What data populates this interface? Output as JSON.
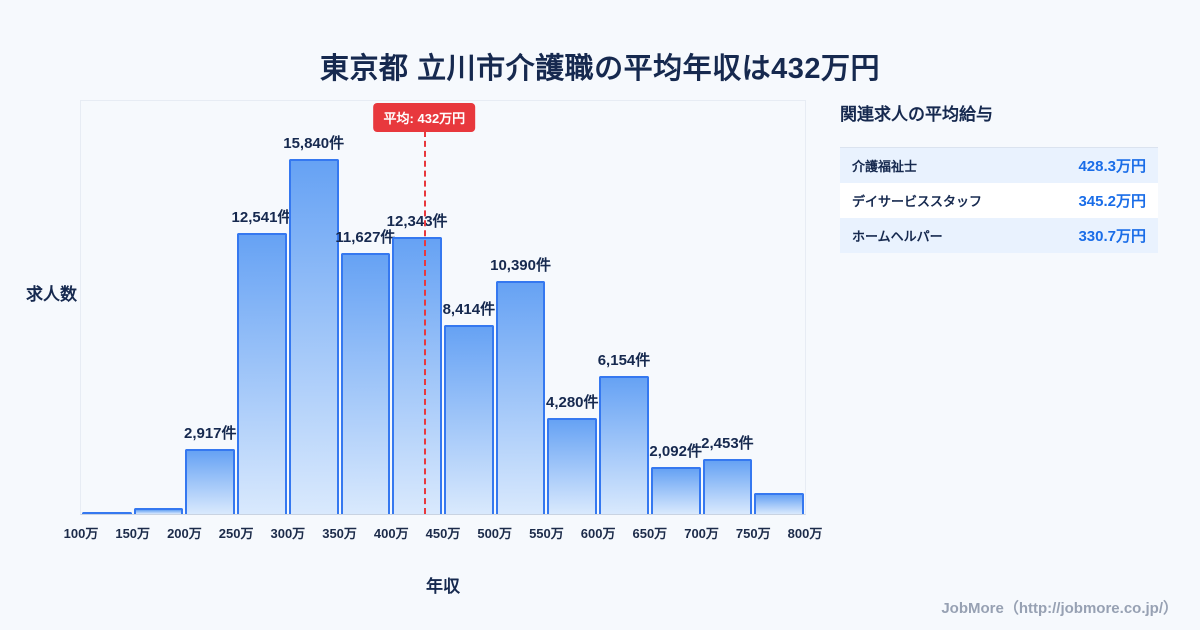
{
  "page": {
    "title": "東京都 立川市介護職の平均年収は432万円",
    "footer": "JobMore（http://jobmore.co.jp/）"
  },
  "chart_data": {
    "type": "bar",
    "title": "東京都 立川市介護職の平均年収は432万円",
    "xlabel": "年収",
    "ylabel": "求人数",
    "x_range": [
      100,
      800
    ],
    "x_ticks": [
      "100万",
      "150万",
      "200万",
      "250万",
      "300万",
      "350万",
      "400万",
      "450万",
      "500万",
      "550万",
      "600万",
      "650万",
      "700万",
      "750万",
      "800万"
    ],
    "bins": [
      {
        "range": "100万-150万",
        "value": 100,
        "label": ""
      },
      {
        "range": "150万-200万",
        "value": 260,
        "label": ""
      },
      {
        "range": "200万-250万",
        "value": 2917,
        "label": "2,917件"
      },
      {
        "range": "250万-300万",
        "value": 12541,
        "label": "12,541件"
      },
      {
        "range": "300万-350万",
        "value": 15840,
        "label": "15,840件"
      },
      {
        "range": "350万-400万",
        "value": 11627,
        "label": "11,627件"
      },
      {
        "range": "400万-450万",
        "value": 12343,
        "label": "12,343件"
      },
      {
        "range": "450万-500万",
        "value": 8414,
        "label": "8,414件"
      },
      {
        "range": "500万-550万",
        "value": 10390,
        "label": "10,390件"
      },
      {
        "range": "550万-600万",
        "value": 4280,
        "label": "4,280件"
      },
      {
        "range": "600万-650万",
        "value": 6154,
        "label": "6,154件"
      },
      {
        "range": "650万-700万",
        "value": 2092,
        "label": "2,092件"
      },
      {
        "range": "700万-750万",
        "value": 2453,
        "label": "2,453件"
      },
      {
        "range": "750万-800万",
        "value": 950,
        "label": ""
      }
    ],
    "average_line": {
      "x_value": 432,
      "label": "平均: 432万円",
      "color": "#e8383d"
    },
    "legend": "none",
    "grid": "off"
  },
  "side_panel": {
    "heading": "関連求人の平均給与",
    "rows": [
      {
        "label": "介護福祉士",
        "value": "428.3万円"
      },
      {
        "label": "デイサービススタッフ",
        "value": "345.2万円"
      },
      {
        "label": "ホームヘルパー",
        "value": "330.7万円"
      }
    ]
  },
  "colors": {
    "background": "#f6f9fd",
    "title_text": "#16294f",
    "bar_border": "#3578f0",
    "bar_fill_top": "#66a2f4",
    "bar_fill_bottom": "#d9e9fd",
    "average_red": "#e8383d",
    "panel_value_blue": "#1a6de8",
    "panel_row_alt": "#e9f2fe",
    "footer_gray": "#97a1b3"
  }
}
